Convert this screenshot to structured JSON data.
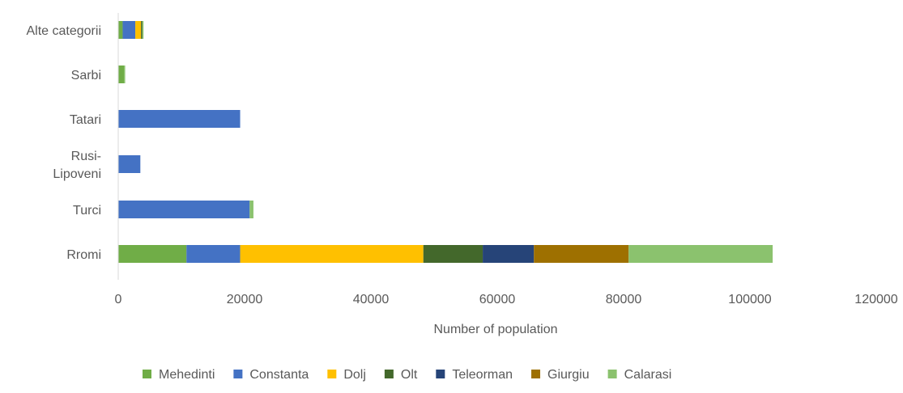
{
  "chart_data": {
    "type": "bar",
    "orientation": "horizontal",
    "stacked": true,
    "title": "",
    "xlabel": "Number of population",
    "ylabel": "",
    "xlim": [
      0,
      120000
    ],
    "x_ticks": [
      0,
      20000,
      40000,
      60000,
      80000,
      100000,
      120000
    ],
    "x_tick_labels": [
      "0",
      "20000",
      "40000",
      "60000",
      "80000",
      "100000",
      "120000"
    ],
    "grid": false,
    "legend_position": "bottom",
    "categories": [
      "Rromi",
      "Turci",
      "Rusi-Lipoveni",
      "Tatari",
      "Sarbi",
      "Alte categorii"
    ],
    "series": [
      {
        "name": "Mehedinti",
        "color": "#70AD47",
        "values": [
          10800,
          0,
          0,
          0,
          900,
          700
        ]
      },
      {
        "name": "Constanta",
        "color": "#4472C4",
        "values": [
          8500,
          20800,
          3500,
          19300,
          0,
          2000
        ]
      },
      {
        "name": "Dolj",
        "color": "#FFC000",
        "values": [
          29000,
          0,
          0,
          0,
          0,
          900
        ]
      },
      {
        "name": "Olt",
        "color": "#43682B",
        "values": [
          9400,
          0,
          0,
          0,
          0,
          200
        ]
      },
      {
        "name": "Teleorman",
        "color": "#264478",
        "values": [
          8100,
          0,
          0,
          0,
          0,
          0
        ]
      },
      {
        "name": "Giurgiu",
        "color": "#9E7000",
        "values": [
          15000,
          0,
          0,
          0,
          0,
          0
        ]
      },
      {
        "name": "Calarasi",
        "color": "#8BC26E",
        "values": [
          22800,
          600,
          0,
          0,
          200,
          200
        ]
      }
    ]
  }
}
